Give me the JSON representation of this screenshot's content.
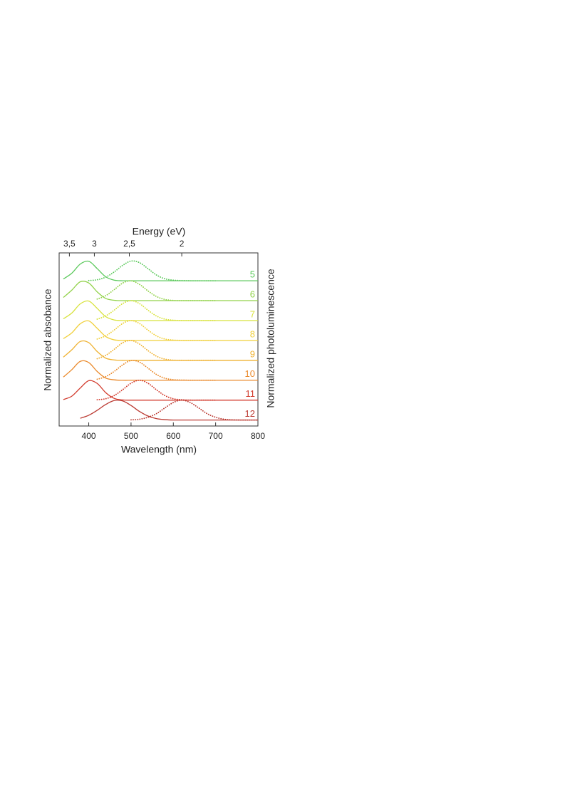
{
  "chart_data": {
    "type": "line",
    "x_label": "Wavelength (nm)",
    "x2_label": "Energy (eV)",
    "y_label": "Normalized absobance",
    "y2_label": "Normalized photoluminescence",
    "xlim": [
      330,
      800
    ],
    "xticks": [
      400,
      500,
      600,
      700,
      800
    ],
    "x2ticks": [
      {
        "value": 3.5,
        "label": "3,5"
      },
      3,
      {
        "value": 2.5,
        "label": "2,5"
      },
      2
    ],
    "ylim": [
      -0.3,
      8.4
    ],
    "x": [
      340,
      360,
      380,
      400,
      420,
      440,
      460,
      480,
      500,
      520,
      540,
      560,
      580,
      600,
      620,
      640,
      660,
      680,
      700,
      720,
      740,
      760,
      780,
      800
    ],
    "series": [
      {
        "name": "5",
        "color": "#5cc95c",
        "absorbance": [
          7.09,
          7.38,
          7.84,
          7.98,
          7.61,
          7.2,
          7.03,
          7,
          7,
          7,
          7,
          7,
          7,
          7,
          7,
          7,
          7,
          7,
          7,
          7,
          7,
          7,
          7,
          7
        ],
        "photoluminescence": [
          null,
          null,
          null,
          7.01,
          7.05,
          7.18,
          7.44,
          7.77,
          7.99,
          7.91,
          7.61,
          7.29,
          7.1,
          7.03,
          7.01,
          7,
          7,
          7,
          7,
          null,
          null,
          null,
          null,
          null
        ]
      },
      {
        "name": "6",
        "color": "#92d24a",
        "absorbance": [
          6.16,
          6.53,
          6.95,
          6.89,
          6.44,
          6.11,
          6.02,
          6,
          6,
          6,
          6,
          6,
          6,
          6,
          6,
          6,
          6,
          6,
          6,
          6,
          6,
          6,
          6,
          6
        ],
        "photoluminescence": [
          null,
          null,
          null,
          null,
          6.08,
          6.25,
          6.55,
          6.88,
          7,
          6.82,
          6.49,
          6.21,
          6.06,
          6.01,
          6,
          6,
          6,
          6,
          6,
          null,
          null,
          null,
          null,
          null
        ]
      },
      {
        "name": "7",
        "color": "#d8e23c",
        "absorbance": [
          5.09,
          5.38,
          5.84,
          5.98,
          5.61,
          5.2,
          5.03,
          5,
          5,
          5,
          5,
          5,
          5,
          5,
          5,
          5,
          5,
          5,
          5,
          5,
          5,
          5,
          5,
          5
        ],
        "photoluminescence": [
          null,
          null,
          null,
          null,
          5.07,
          5.23,
          5.52,
          5.85,
          6,
          5.85,
          5.52,
          5.23,
          5.07,
          5.02,
          5,
          5,
          5,
          5,
          5,
          null,
          null,
          null,
          null,
          null
        ]
      },
      {
        "name": "8",
        "color": "#f0d03c",
        "absorbance": [
          4.09,
          4.38,
          4.84,
          4.98,
          4.61,
          4.2,
          4.03,
          4,
          4,
          4,
          4,
          4,
          4,
          4,
          4,
          4,
          4,
          4,
          4,
          4,
          4,
          4,
          4,
          4
        ],
        "photoluminescence": [
          null,
          null,
          null,
          null,
          4.07,
          4.23,
          4.52,
          4.85,
          5,
          4.85,
          4.52,
          4.23,
          4.07,
          4.02,
          4,
          4,
          4,
          4,
          4,
          null,
          null,
          null,
          null,
          null
        ]
      },
      {
        "name": "9",
        "color": "#efb232",
        "absorbance": [
          3.16,
          3.53,
          3.95,
          3.89,
          3.44,
          3.11,
          3.02,
          3,
          3,
          3,
          3,
          3,
          3,
          3,
          3,
          3,
          3,
          3,
          3,
          3,
          3,
          3,
          3,
          3
        ],
        "photoluminescence": [
          null,
          null,
          null,
          null,
          3.08,
          3.25,
          3.55,
          3.88,
          4,
          3.82,
          3.49,
          3.21,
          3.06,
          3.01,
          3,
          3,
          3,
          3,
          3,
          null,
          null,
          null,
          null,
          null
        ]
      },
      {
        "name": "10",
        "color": "#ea8a2c",
        "absorbance": [
          2.16,
          2.53,
          2.95,
          2.89,
          2.44,
          2.11,
          2.02,
          2,
          2,
          2,
          2,
          2,
          2,
          2,
          2,
          2,
          2,
          2,
          2,
          2,
          2,
          2,
          2,
          2
        ],
        "photoluminescence": [
          null,
          null,
          null,
          null,
          2.05,
          2.18,
          2.44,
          2.77,
          2.99,
          2.91,
          2.61,
          2.29,
          2.1,
          2.03,
          2.01,
          2,
          2,
          2,
          2,
          null,
          null,
          null,
          null,
          null
        ]
      },
      {
        "name": "11",
        "color": "#d23a2c",
        "absorbance": [
          1.03,
          1.2,
          1.61,
          1.98,
          1.84,
          1.38,
          1.09,
          1.01,
          1,
          1,
          1,
          1,
          1,
          1,
          1,
          1,
          1,
          1,
          1,
          1,
          1,
          1,
          1,
          1
        ],
        "photoluminescence": [
          null,
          null,
          null,
          null,
          1.02,
          1.07,
          1.23,
          1.52,
          1.85,
          2,
          1.85,
          1.52,
          1.23,
          1.07,
          1.02,
          1,
          1,
          1,
          1,
          null,
          null,
          null,
          null,
          null
        ]
      },
      {
        "name": "12",
        "color": "#bb3a32",
        "absorbance": [
          null,
          null,
          0.09,
          0.24,
          0.49,
          0.78,
          0.98,
          0.96,
          0.73,
          0.43,
          0.2,
          0.07,
          0.02,
          0,
          0,
          0,
          0,
          0,
          0,
          0,
          0,
          0,
          0,
          0
        ],
        "photoluminescence": [
          null,
          null,
          null,
          null,
          null,
          null,
          null,
          null,
          0.01,
          0.04,
          0.14,
          0.32,
          0.61,
          0.88,
          1,
          0.88,
          0.61,
          0.32,
          0.14,
          0.04,
          0.01,
          0,
          0,
          0
        ]
      }
    ]
  }
}
